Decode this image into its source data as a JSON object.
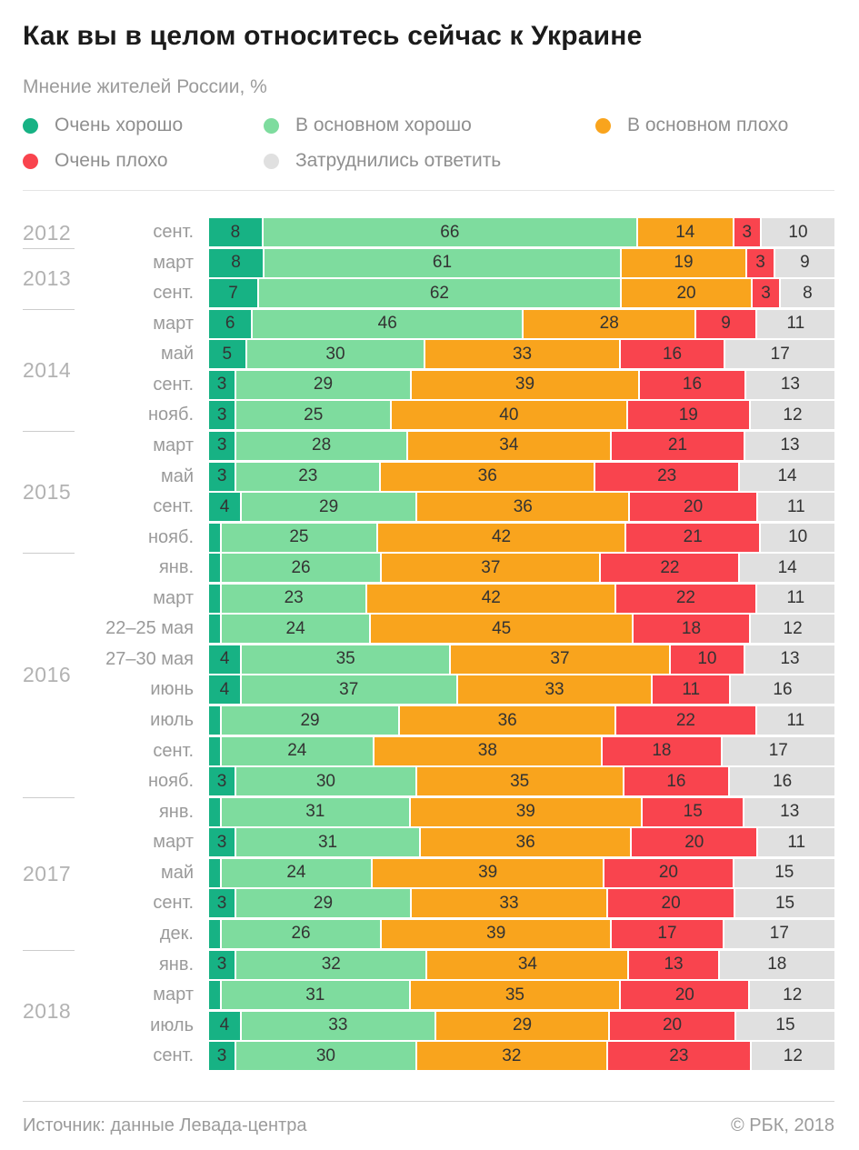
{
  "title": "Как вы в целом относитесь сейчас к Украине",
  "subtitle": "Мнение жителей России, %",
  "legend": [
    {
      "label": "Очень хорошо",
      "color": "#17b284"
    },
    {
      "label": "В основном хорошо",
      "color": "#7edc9e"
    },
    {
      "label": "В основном плохо",
      "color": "#f9a41d"
    },
    {
      "label": "Очень плохо",
      "color": "#f9444e"
    },
    {
      "label": "Затруднились ответить",
      "color": "#e0e0e0"
    }
  ],
  "footer": {
    "source": "Источник: данные Левада-центра",
    "copyright": "© РБК, 2018"
  },
  "chart_data": {
    "type": "bar",
    "stacked": true,
    "orientation": "horizontal",
    "unit": "%",
    "min_label_value": 3,
    "series_names": [
      "Очень хорошо",
      "В основном хорошо",
      "В основном плохо",
      "Очень плохо",
      "Затруднились ответить"
    ],
    "colors": [
      "#17b284",
      "#7edc9e",
      "#f9a41d",
      "#f9444e",
      "#e0e0e0"
    ],
    "groups": [
      {
        "year": "2012",
        "rows": [
          {
            "label": "сент.",
            "values": [
              8,
              66,
              14,
              3,
              10
            ]
          }
        ]
      },
      {
        "year": "2013",
        "rows": [
          {
            "label": "март",
            "values": [
              8,
              61,
              19,
              3,
              9
            ]
          },
          {
            "label": "сент.",
            "values": [
              7,
              62,
              20,
              3,
              8
            ]
          }
        ]
      },
      {
        "year": "2014",
        "rows": [
          {
            "label": "март",
            "values": [
              6,
              46,
              28,
              9,
              11
            ]
          },
          {
            "label": "май",
            "values": [
              5,
              30,
              33,
              16,
              17
            ]
          },
          {
            "label": "сент.",
            "values": [
              3,
              29,
              39,
              16,
              13
            ]
          },
          {
            "label": "нояб.",
            "values": [
              3,
              25,
              40,
              19,
              12
            ]
          }
        ]
      },
      {
        "year": "2015",
        "rows": [
          {
            "label": "март",
            "values": [
              3,
              28,
              34,
              21,
              13
            ]
          },
          {
            "label": "май",
            "values": [
              3,
              23,
              36,
              23,
              14
            ]
          },
          {
            "label": "сент.",
            "values": [
              4,
              29,
              36,
              20,
              11
            ]
          },
          {
            "label": "нояб.",
            "values": [
              2,
              25,
              42,
              21,
              10
            ]
          }
        ]
      },
      {
        "year": "2016",
        "rows": [
          {
            "label": "янв.",
            "values": [
              2,
              26,
              37,
              22,
              14
            ]
          },
          {
            "label": "март",
            "values": [
              2,
              23,
              42,
              22,
              11
            ]
          },
          {
            "label": "22–25 мая",
            "values": [
              2,
              24,
              45,
              18,
              12
            ]
          },
          {
            "label": "27–30 мая",
            "values": [
              4,
              35,
              37,
              10,
              13
            ]
          },
          {
            "label": "июнь",
            "values": [
              4,
              37,
              33,
              11,
              16
            ]
          },
          {
            "label": "июль",
            "values": [
              2,
              29,
              36,
              22,
              11
            ]
          },
          {
            "label": "сент.",
            "values": [
              2,
              24,
              38,
              18,
              17
            ]
          },
          {
            "label": "нояб.",
            "values": [
              3,
              30,
              35,
              16,
              16
            ]
          }
        ]
      },
      {
        "year": "2017",
        "rows": [
          {
            "label": "янв.",
            "values": [
              2,
              31,
              39,
              15,
              13
            ]
          },
          {
            "label": "март",
            "values": [
              3,
              31,
              36,
              20,
              11
            ]
          },
          {
            "label": "май",
            "values": [
              2,
              24,
              39,
              20,
              15
            ]
          },
          {
            "label": "сент.",
            "values": [
              3,
              29,
              33,
              20,
              15
            ]
          },
          {
            "label": "дек.",
            "values": [
              2,
              26,
              39,
              17,
              17
            ]
          }
        ]
      },
      {
        "year": "2018",
        "rows": [
          {
            "label": "янв.",
            "values": [
              3,
              32,
              34,
              13,
              18
            ]
          },
          {
            "label": "март",
            "values": [
              2,
              31,
              35,
              20,
              12
            ]
          },
          {
            "label": "июль",
            "values": [
              4,
              33,
              29,
              20,
              15
            ]
          },
          {
            "label": "сент.",
            "values": [
              3,
              30,
              32,
              23,
              12
            ]
          }
        ]
      }
    ]
  }
}
